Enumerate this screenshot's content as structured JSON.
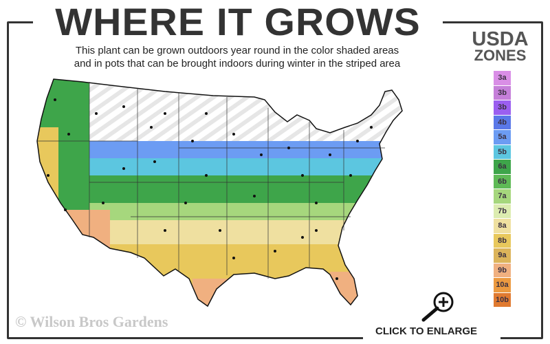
{
  "header": {
    "title": "WHERE IT GROWS",
    "subtitle_line1": "This plant can be grown outdoors year round in the color shaded areas",
    "subtitle_line2": "and in pots that can be brought indoors during winter in the striped area"
  },
  "legend": {
    "title_line1": "USDA",
    "title_line2": "ZONES",
    "zones": [
      {
        "label": "3a",
        "color": "#d98ee6"
      },
      {
        "label": "3b",
        "color": "#c57fd9"
      },
      {
        "label": "3b",
        "color": "#9b5ff0"
      },
      {
        "label": "4b",
        "color": "#5a78e8"
      },
      {
        "label": "5a",
        "color": "#6c9cf3"
      },
      {
        "label": "5b",
        "color": "#5cc6e0"
      },
      {
        "label": "6a",
        "color": "#3ea54a"
      },
      {
        "label": "6b",
        "color": "#5fba56"
      },
      {
        "label": "7a",
        "color": "#a6d77d"
      },
      {
        "label": "7b",
        "color": "#dcecb0"
      },
      {
        "label": "8a",
        "color": "#efe0a0"
      },
      {
        "label": "8b",
        "color": "#e8c85c"
      },
      {
        "label": "9a",
        "color": "#dcb45a"
      },
      {
        "label": "9b",
        "color": "#f0b080"
      },
      {
        "label": "10a",
        "color": "#ec9a40"
      },
      {
        "label": "10b",
        "color": "#e07a30"
      }
    ]
  },
  "map": {
    "striped_area": "outdoor in pots / indoors in winter",
    "stripe_color": "#e6e6e6"
  },
  "footer": {
    "copyright": "© Wilson Bros Gardens",
    "enlarge_label": "CLICK TO ENLARGE",
    "enlarge_icon": "zoom-in-icon"
  }
}
